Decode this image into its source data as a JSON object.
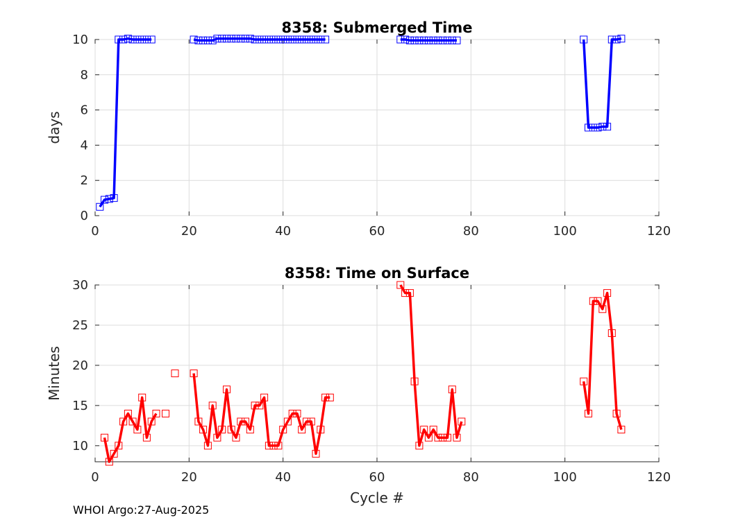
{
  "footer": "WHOI Argo:27-Aug-2025",
  "chart_data": [
    {
      "type": "line",
      "title": "8358: Submerged Time",
      "xlabel": "",
      "ylabel": "days",
      "xlim": [
        0,
        120
      ],
      "ylim": [
        0,
        10
      ],
      "xticks": [
        0,
        20,
        40,
        60,
        80,
        100,
        120
      ],
      "yticks": [
        0,
        2,
        4,
        6,
        8,
        10
      ],
      "xtick_labels": [
        "0",
        "20",
        "40",
        "60",
        "80",
        "100",
        "120"
      ],
      "ytick_labels": [
        "0",
        "2",
        "4",
        "6",
        "8",
        "10"
      ],
      "grid": true,
      "marker": "square",
      "color": "#0000ff",
      "points": [
        [
          1,
          0.5
        ],
        [
          2,
          0.9
        ],
        [
          3,
          0.95
        ],
        [
          4,
          1.0
        ],
        [
          5,
          10.0
        ],
        [
          6,
          10.0
        ],
        [
          7,
          10.05
        ],
        [
          8,
          10.0
        ],
        [
          9,
          10.0
        ],
        [
          10,
          10.0
        ],
        [
          11,
          10.0
        ],
        [
          12,
          10.0
        ],
        [
          21,
          10.0
        ],
        [
          22,
          9.95
        ],
        [
          23,
          9.95
        ],
        [
          24,
          9.95
        ],
        [
          25,
          9.95
        ],
        [
          26,
          10.05
        ],
        [
          27,
          10.05
        ],
        [
          28,
          10.05
        ],
        [
          29,
          10.05
        ],
        [
          30,
          10.05
        ],
        [
          31,
          10.05
        ],
        [
          32,
          10.05
        ],
        [
          33,
          10.05
        ],
        [
          34,
          10.0
        ],
        [
          35,
          10.0
        ],
        [
          36,
          10.0
        ],
        [
          37,
          10.0
        ],
        [
          38,
          10.0
        ],
        [
          39,
          10.0
        ],
        [
          40,
          10.0
        ],
        [
          41,
          10.0
        ],
        [
          42,
          10.0
        ],
        [
          43,
          10.0
        ],
        [
          44,
          10.0
        ],
        [
          45,
          10.0
        ],
        [
          46,
          10.0
        ],
        [
          47,
          10.0
        ],
        [
          48,
          10.0
        ],
        [
          49,
          10.0
        ],
        [
          65,
          10.0
        ],
        [
          66,
          10.0
        ],
        [
          67,
          9.95
        ],
        [
          68,
          9.95
        ],
        [
          69,
          9.95
        ],
        [
          70,
          9.95
        ],
        [
          71,
          9.95
        ],
        [
          72,
          9.95
        ],
        [
          73,
          9.95
        ],
        [
          74,
          9.95
        ],
        [
          75,
          9.95
        ],
        [
          76,
          9.95
        ],
        [
          77,
          9.95
        ],
        [
          104,
          10.0
        ],
        [
          105,
          5.0
        ],
        [
          106,
          5.0
        ],
        [
          107,
          5.0
        ],
        [
          108,
          5.05
        ],
        [
          109,
          5.05
        ],
        [
          110,
          10.0
        ],
        [
          111,
          10.0
        ],
        [
          112,
          10.05
        ]
      ],
      "segments": [
        [
          1,
          12
        ],
        [
          21,
          49
        ],
        [
          65,
          77
        ],
        [
          104,
          112
        ]
      ]
    },
    {
      "type": "line",
      "title": "8358: Time on Surface",
      "xlabel": "Cycle #",
      "ylabel": "Minutes",
      "xlim": [
        0,
        120
      ],
      "ylim": [
        8,
        30
      ],
      "xticks": [
        0,
        20,
        40,
        60,
        80,
        100,
        120
      ],
      "yticks": [
        10,
        15,
        20,
        25,
        30
      ],
      "xtick_labels": [
        "0",
        "20",
        "40",
        "60",
        "80",
        "100",
        "120"
      ],
      "ytick_labels": [
        "10",
        "15",
        "20",
        "25",
        "30"
      ],
      "grid": true,
      "marker": "square",
      "color": "#ff0000",
      "points": [
        [
          2,
          11
        ],
        [
          3,
          8
        ],
        [
          4,
          9
        ],
        [
          5,
          10
        ],
        [
          6,
          13
        ],
        [
          7,
          14
        ],
        [
          8,
          13
        ],
        [
          9,
          12
        ],
        [
          10,
          16
        ],
        [
          11,
          11
        ],
        [
          12,
          13
        ],
        [
          13,
          14
        ],
        [
          15,
          14
        ],
        [
          17,
          19
        ],
        [
          21,
          19
        ],
        [
          22,
          13
        ],
        [
          23,
          12
        ],
        [
          24,
          10
        ],
        [
          25,
          15
        ],
        [
          26,
          11
        ],
        [
          27,
          12
        ],
        [
          28,
          17
        ],
        [
          29,
          12
        ],
        [
          30,
          11
        ],
        [
          31,
          13
        ],
        [
          32,
          13
        ],
        [
          33,
          12
        ],
        [
          34,
          15
        ],
        [
          35,
          15
        ],
        [
          36,
          16
        ],
        [
          37,
          10
        ],
        [
          38,
          10
        ],
        [
          39,
          10
        ],
        [
          40,
          12
        ],
        [
          41,
          13
        ],
        [
          42,
          14
        ],
        [
          43,
          14
        ],
        [
          44,
          12
        ],
        [
          45,
          13
        ],
        [
          46,
          13
        ],
        [
          47,
          9
        ],
        [
          48,
          12
        ],
        [
          49,
          16
        ],
        [
          50,
          16
        ],
        [
          65,
          30
        ],
        [
          66,
          29
        ],
        [
          67,
          29
        ],
        [
          68,
          18
        ],
        [
          69,
          10
        ],
        [
          70,
          12
        ],
        [
          71,
          11
        ],
        [
          72,
          12
        ],
        [
          73,
          11
        ],
        [
          74,
          11
        ],
        [
          75,
          11
        ],
        [
          76,
          17
        ],
        [
          77,
          11
        ],
        [
          78,
          13
        ],
        [
          104,
          18
        ],
        [
          105,
          14
        ],
        [
          106,
          28
        ],
        [
          107,
          28
        ],
        [
          108,
          27
        ],
        [
          109,
          29
        ],
        [
          110,
          24
        ],
        [
          111,
          14
        ],
        [
          112,
          12
        ]
      ],
      "segments": [
        [
          2,
          13
        ],
        [
          21,
          50
        ],
        [
          65,
          78
        ],
        [
          104,
          112
        ]
      ]
    }
  ]
}
